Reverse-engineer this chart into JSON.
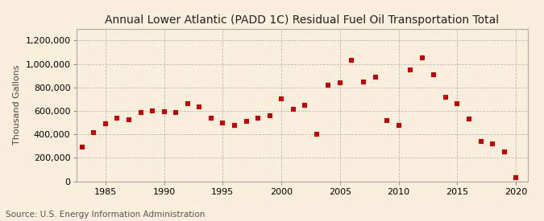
{
  "title": "Annual Lower Atlantic (PADD 1C) Residual Fuel Oil Transportation Total",
  "ylabel": "Thousand Gallons",
  "source": "Source: U.S. Energy Information Administration",
  "background_color": "#faeedd",
  "plot_background_color": "#faeedd",
  "marker_color": "#cc0000",
  "marker": "s",
  "marker_size": 18,
  "xlim": [
    1982.5,
    2021
  ],
  "ylim": [
    0,
    1300000
  ],
  "yticks": [
    0,
    200000,
    400000,
    600000,
    800000,
    1000000,
    1200000
  ],
  "xticks": [
    1985,
    1990,
    1995,
    2000,
    2005,
    2010,
    2015,
    2020
  ],
  "years": [
    1983,
    1984,
    1985,
    1986,
    1987,
    1988,
    1989,
    1990,
    1991,
    1992,
    1993,
    1994,
    1995,
    1996,
    1997,
    1998,
    1999,
    2000,
    2001,
    2002,
    2003,
    2004,
    2005,
    2006,
    2007,
    2008,
    2009,
    2010,
    2011,
    2012,
    2013,
    2014,
    2015,
    2016,
    2017,
    2018,
    2019,
    2020
  ],
  "values": [
    290000,
    415000,
    490000,
    535000,
    525000,
    585000,
    600000,
    590000,
    585000,
    660000,
    635000,
    540000,
    500000,
    475000,
    510000,
    540000,
    560000,
    700000,
    615000,
    645000,
    400000,
    820000,
    840000,
    1030000,
    845000,
    890000,
    520000,
    475000,
    950000,
    1050000,
    910000,
    715000,
    660000,
    530000,
    340000,
    320000,
    250000,
    30000
  ],
  "title_fontsize": 10,
  "axis_label_fontsize": 8,
  "tick_fontsize": 8,
  "source_fontsize": 7.5
}
